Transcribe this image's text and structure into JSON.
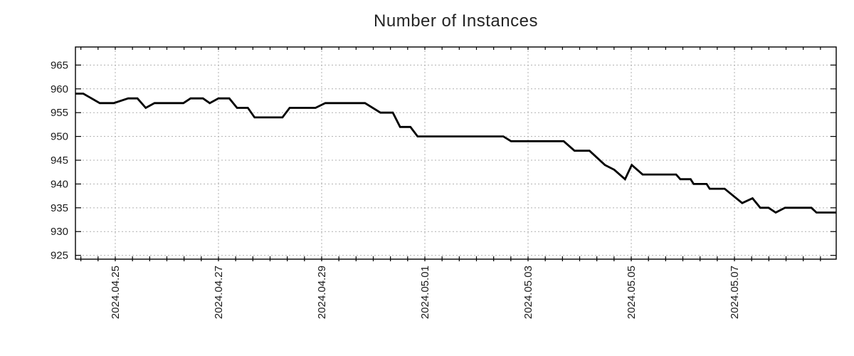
{
  "chart_data": {
    "type": "line",
    "title": "Number of Instances",
    "grid": "dotted",
    "legend": "none",
    "colors": {
      "line": "#000000",
      "grid": "#b0b0b0",
      "axis": "#000000",
      "background": "#ffffff",
      "text": "#1a1a1a"
    },
    "x_axis": {
      "unit_days_since": "2024-04-24 00:00",
      "range": [
        0.228,
        14.972
      ],
      "major_ticks": [
        {
          "t": 1,
          "label": "2024.04.25"
        },
        {
          "t": 3,
          "label": "2024.04.27"
        },
        {
          "t": 5,
          "label": "2024.04.29"
        },
        {
          "t": 7,
          "label": "2024.05.01"
        },
        {
          "t": 9,
          "label": "2024.05.03"
        },
        {
          "t": 11,
          "label": "2024.05.05"
        },
        {
          "t": 13,
          "label": "2024.05.07"
        }
      ],
      "minor_tick_step_days": 0.33333
    },
    "y_axis": {
      "range": [
        924.2,
        968.8
      ],
      "ticks": [
        925,
        930,
        935,
        940,
        945,
        950,
        955,
        960,
        965
      ]
    },
    "series": [
      {
        "name": "instances",
        "points": [
          [
            0.228,
            959
          ],
          [
            0.38,
            959
          ],
          [
            0.7,
            957
          ],
          [
            0.97,
            957
          ],
          [
            1.25,
            958
          ],
          [
            1.43,
            958
          ],
          [
            1.59,
            956
          ],
          [
            1.76,
            957
          ],
          [
            2.32,
            957
          ],
          [
            2.46,
            958
          ],
          [
            2.7,
            958
          ],
          [
            2.83,
            957
          ],
          [
            3.0,
            958
          ],
          [
            3.21,
            958
          ],
          [
            3.36,
            956
          ],
          [
            3.57,
            956
          ],
          [
            3.7,
            954
          ],
          [
            4.24,
            954
          ],
          [
            4.38,
            956
          ],
          [
            4.88,
            956
          ],
          [
            5.07,
            957
          ],
          [
            5.84,
            957
          ],
          [
            6.14,
            955
          ],
          [
            6.38,
            955
          ],
          [
            6.52,
            952
          ],
          [
            6.72,
            952
          ],
          [
            6.86,
            950
          ],
          [
            8.52,
            950
          ],
          [
            8.67,
            949
          ],
          [
            9.69,
            949
          ],
          [
            9.9,
            947
          ],
          [
            10.19,
            947
          ],
          [
            10.49,
            944
          ],
          [
            10.67,
            943
          ],
          [
            10.88,
            941
          ],
          [
            11.01,
            944
          ],
          [
            11.22,
            942
          ],
          [
            11.87,
            942
          ],
          [
            11.95,
            941
          ],
          [
            12.15,
            941
          ],
          [
            12.21,
            940
          ],
          [
            12.46,
            940
          ],
          [
            12.52,
            939
          ],
          [
            12.81,
            939
          ],
          [
            13.15,
            936
          ],
          [
            13.35,
            937
          ],
          [
            13.5,
            935
          ],
          [
            13.66,
            935
          ],
          [
            13.8,
            934
          ],
          [
            13.98,
            935
          ],
          [
            14.49,
            935
          ],
          [
            14.59,
            934
          ],
          [
            14.97,
            934
          ]
        ]
      }
    ]
  }
}
